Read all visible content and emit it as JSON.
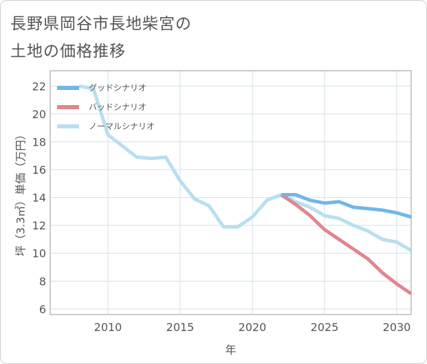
{
  "title_lines": [
    "長野県岡谷市長地柴宮の",
    "土地の価格推移"
  ],
  "chart_data": {
    "type": "line",
    "xlabel": "年",
    "ylabel": "坪（3.3㎡）単価（万円）",
    "xlim": [
      2006,
      2031
    ],
    "ylim": [
      5.6,
      23.1
    ],
    "xticks": [
      2010,
      2015,
      2020,
      2025,
      2030
    ],
    "yticks": [
      6,
      8,
      10,
      12,
      14,
      16,
      18,
      20,
      22
    ],
    "grid": true,
    "legend_position": "top-left",
    "series": [
      {
        "name": "グッドシナリオ",
        "color": "#6fb7e8",
        "x": [
          2022,
          2023,
          2024,
          2025,
          2026,
          2027,
          2028,
          2029,
          2030,
          2031
        ],
        "y": [
          14.2,
          14.2,
          13.8,
          13.6,
          13.7,
          13.3,
          13.2,
          13.1,
          12.9,
          12.6
        ]
      },
      {
        "name": "バッドシナリオ",
        "color": "#e0868f",
        "x": [
          2022,
          2023,
          2024,
          2025,
          2026,
          2027,
          2028,
          2029,
          2030,
          2031
        ],
        "y": [
          14.2,
          13.5,
          12.7,
          11.7,
          11.0,
          10.3,
          9.6,
          8.6,
          7.8,
          7.1
        ]
      },
      {
        "name": "ノーマルシナリオ",
        "color": "#b8dff0",
        "x": [
          2008,
          2009,
          2010,
          2011,
          2012,
          2013,
          2014,
          2015,
          2016,
          2017,
          2018,
          2019,
          2020,
          2021,
          2022,
          2023,
          2024,
          2025,
          2026,
          2027,
          2028,
          2029,
          2030,
          2031
        ],
        "y": [
          22.0,
          21.8,
          18.5,
          17.7,
          16.9,
          16.8,
          16.9,
          15.2,
          13.9,
          13.4,
          11.9,
          11.9,
          12.6,
          13.8,
          14.2,
          13.7,
          13.3,
          12.7,
          12.5,
          12.0,
          11.6,
          11.0,
          10.8,
          10.2
        ]
      }
    ]
  }
}
